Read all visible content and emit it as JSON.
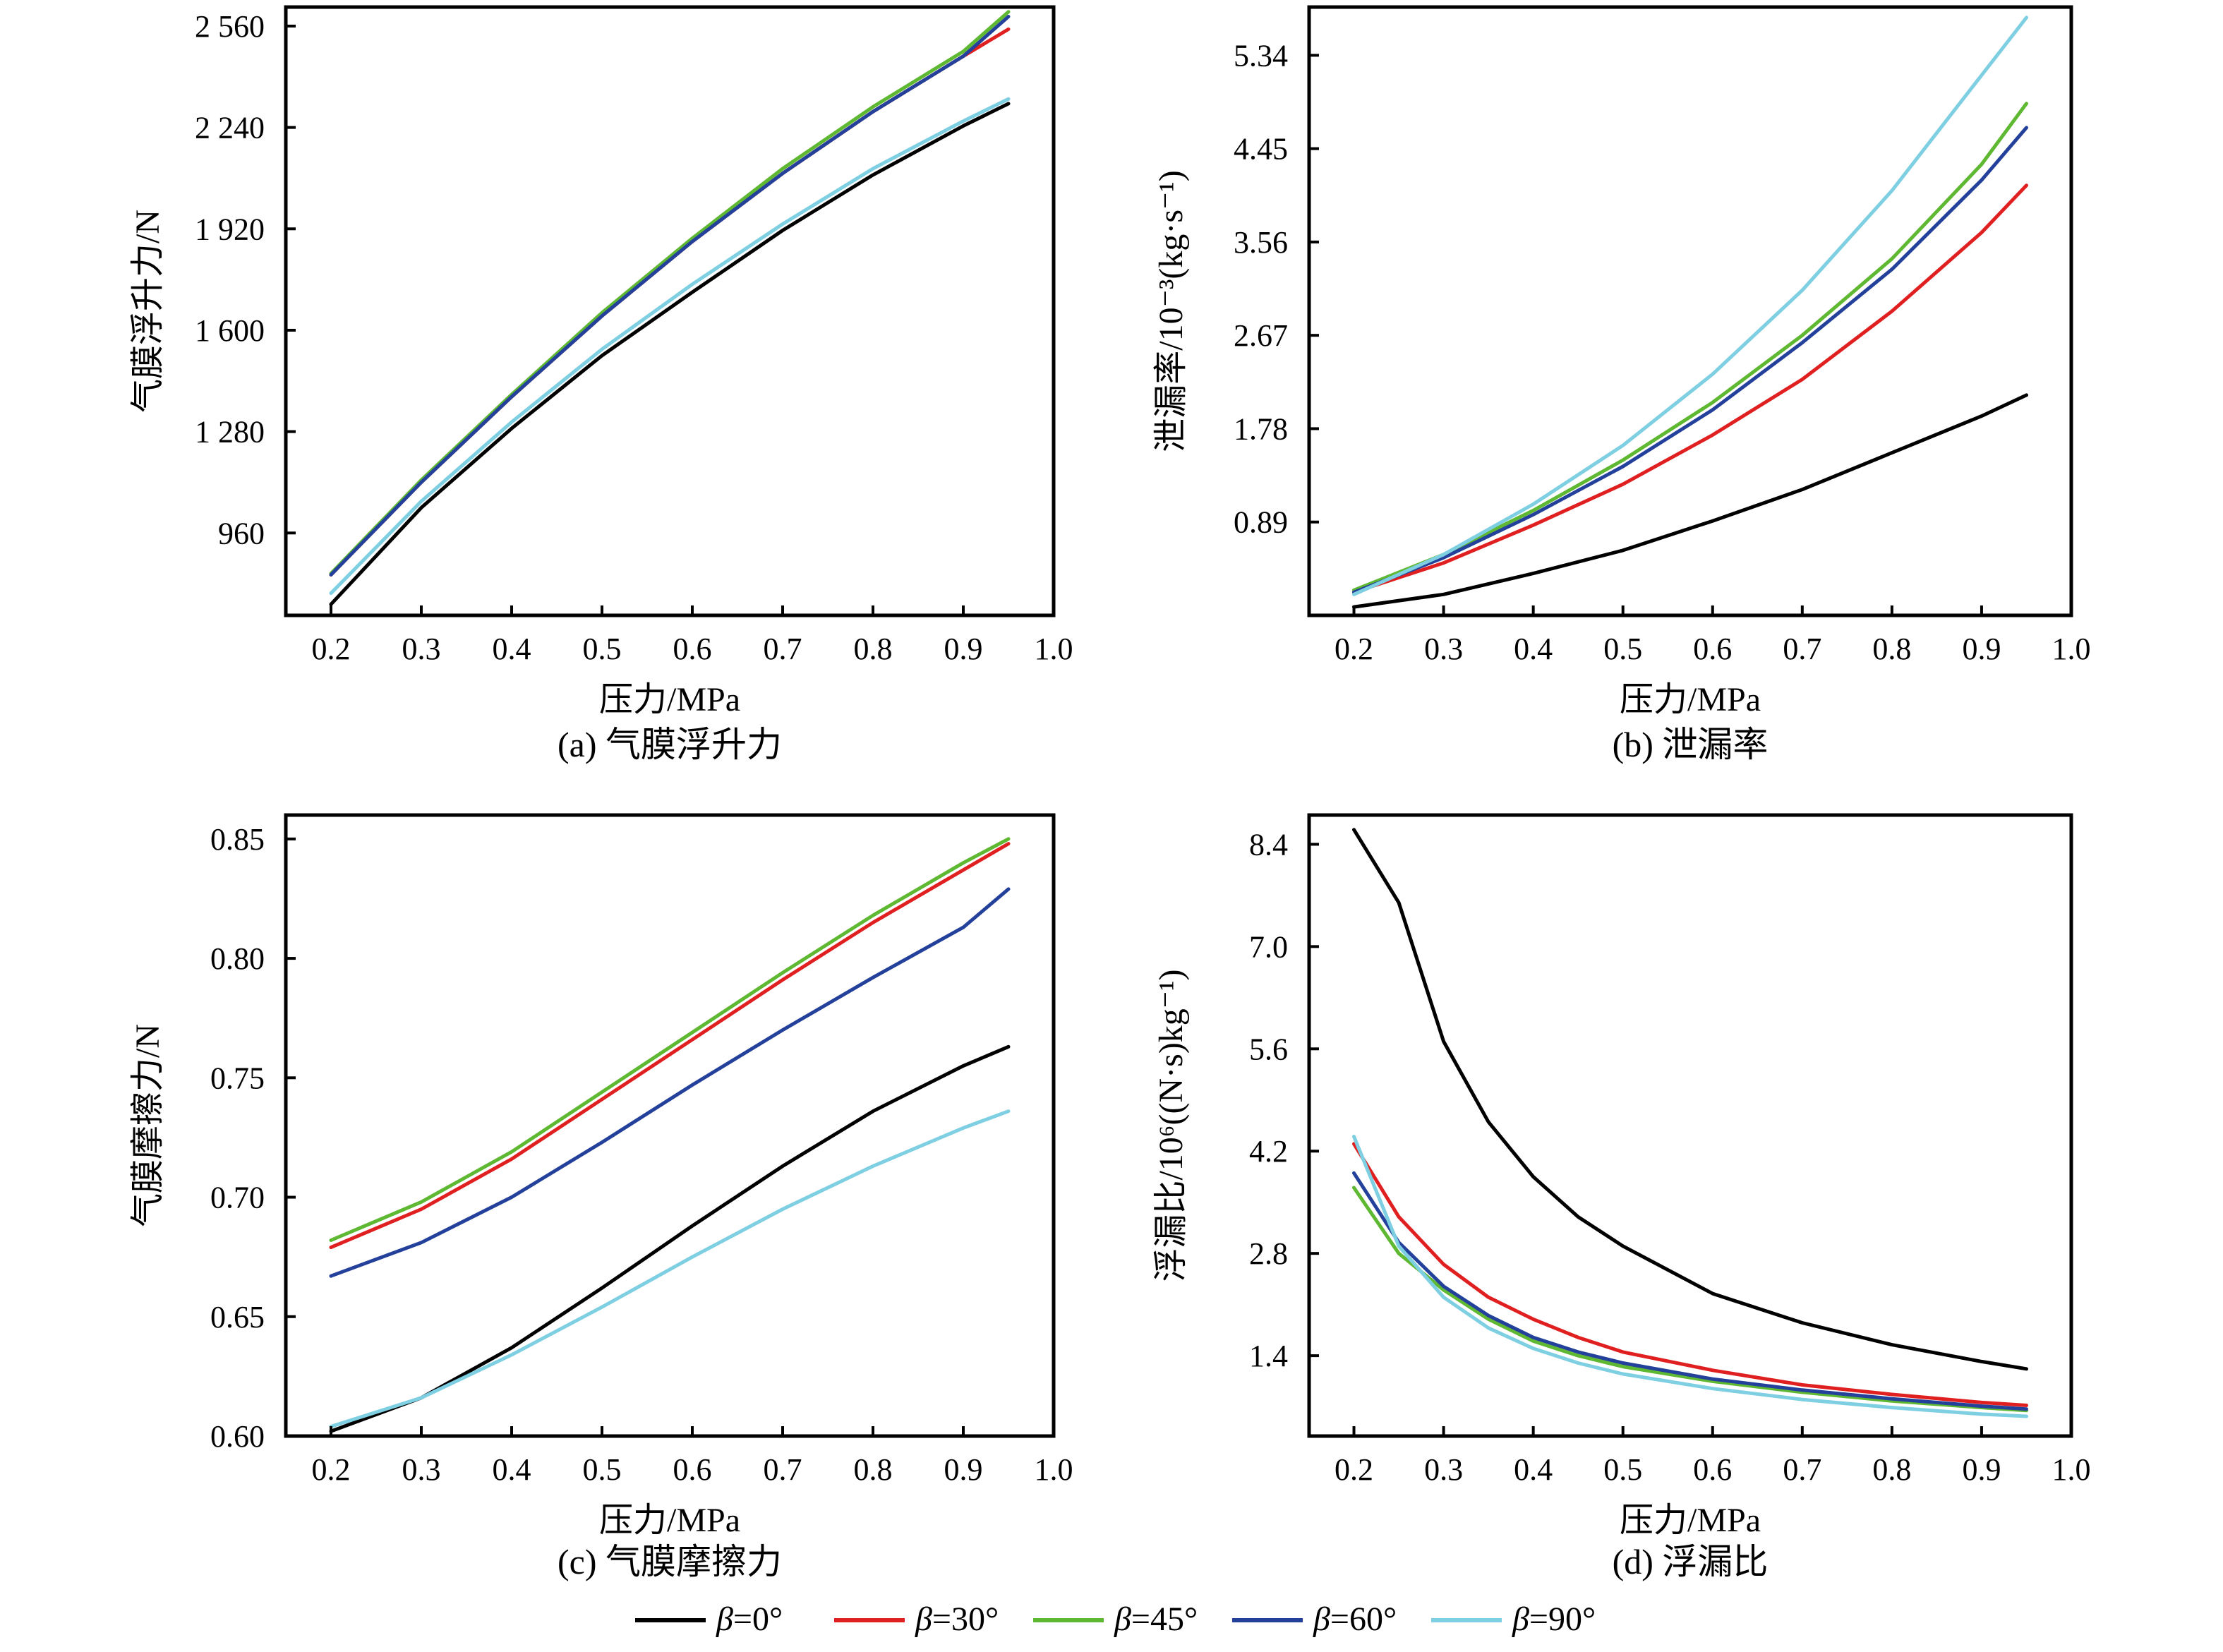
{
  "legend": {
    "prefix": "β",
    "items": [
      {
        "eq": "=0°",
        "color": "#000000"
      },
      {
        "eq": "=30°",
        "color": "#e02020"
      },
      {
        "eq": "=45°",
        "color": "#5fb832"
      },
      {
        "eq": "=60°",
        "color": "#23409a"
      },
      {
        "eq": "=90°",
        "color": "#7ecfe2"
      }
    ]
  },
  "chart_data": [
    {
      "id": "a",
      "type": "line",
      "caption": "(a) 气膜浮升力",
      "xlabel": "压力/MPa",
      "ylabel": "气膜浮升力/N",
      "xlim": [
        0.15,
        1.0
      ],
      "ylim": [
        700,
        2620
      ],
      "xticks": [
        "0.2",
        "0.3",
        "0.4",
        "0.5",
        "0.6",
        "0.7",
        "0.8",
        "0.9",
        "1.0"
      ],
      "yticks": [
        "960",
        "1 280",
        "1 600",
        "1 920",
        "2 240",
        "2 560"
      ],
      "x": [
        0.2,
        0.3,
        0.4,
        0.5,
        0.6,
        0.7,
        0.8,
        0.9,
        0.95
      ],
      "series": [
        {
          "name": "β=0°",
          "color": "#000000",
          "values": [
            735,
            1040,
            1290,
            1520,
            1720,
            1915,
            2090,
            2245,
            2315
          ]
        },
        {
          "name": "β=30°",
          "color": "#e02020",
          "values": [
            828,
            1120,
            1390,
            1645,
            1880,
            2095,
            2290,
            2465,
            2550
          ]
        },
        {
          "name": "β=45°",
          "color": "#5fb832",
          "values": [
            832,
            1127,
            1397,
            1655,
            1890,
            2110,
            2305,
            2480,
            2605
          ]
        },
        {
          "name": "β=60°",
          "color": "#23409a",
          "values": [
            828,
            1120,
            1390,
            1645,
            1880,
            2095,
            2290,
            2465,
            2590
          ]
        },
        {
          "name": "β=90°",
          "color": "#7ecfe2",
          "values": [
            770,
            1060,
            1310,
            1540,
            1745,
            1935,
            2110,
            2260,
            2330
          ]
        }
      ]
    },
    {
      "id": "b",
      "type": "line",
      "caption": "(b) 泄漏率",
      "xlabel": "压力/MPa",
      "ylabel": "泄漏率/10⁻³(kg·s⁻¹)",
      "xlim": [
        0.15,
        1.0
      ],
      "ylim": [
        0.0,
        5.8
      ],
      "xticks": [
        "0.2",
        "0.3",
        "0.4",
        "0.5",
        "0.6",
        "0.7",
        "0.8",
        "0.9",
        "1.0"
      ],
      "yticks": [
        "0.89",
        "1.78",
        "2.67",
        "3.56",
        "4.45",
        "5.34"
      ],
      "x": [
        0.2,
        0.3,
        0.4,
        0.5,
        0.6,
        0.7,
        0.8,
        0.9,
        0.95
      ],
      "series": [
        {
          "name": "β=0°",
          "color": "#000000",
          "values": [
            0.08,
            0.2,
            0.4,
            0.62,
            0.9,
            1.2,
            1.55,
            1.9,
            2.1
          ]
        },
        {
          "name": "β=30°",
          "color": "#e02020",
          "values": [
            0.22,
            0.5,
            0.86,
            1.25,
            1.72,
            2.25,
            2.9,
            3.65,
            4.1
          ]
        },
        {
          "name": "β=45°",
          "color": "#5fb832",
          "values": [
            0.24,
            0.58,
            1.0,
            1.48,
            2.03,
            2.67,
            3.4,
            4.3,
            4.88
          ]
        },
        {
          "name": "β=60°",
          "color": "#23409a",
          "values": [
            0.22,
            0.55,
            0.96,
            1.42,
            1.96,
            2.6,
            3.3,
            4.15,
            4.65
          ]
        },
        {
          "name": "β=90°",
          "color": "#7ecfe2",
          "values": [
            0.2,
            0.58,
            1.06,
            1.62,
            2.3,
            3.1,
            4.05,
            5.15,
            5.7
          ]
        }
      ]
    },
    {
      "id": "c",
      "type": "line",
      "caption": "(c) 气膜摩擦力",
      "xlabel": "压力/MPa",
      "ylabel": "气膜摩擦力/N",
      "xlim": [
        0.15,
        1.0
      ],
      "ylim": [
        0.6,
        0.86
      ],
      "xticks": [
        "0.2",
        "0.3",
        "0.4",
        "0.5",
        "0.6",
        "0.7",
        "0.8",
        "0.9",
        "1.0"
      ],
      "yticks": [
        "0.60",
        "0.65",
        "0.70",
        "0.75",
        "0.80",
        "0.85"
      ],
      "x": [
        0.2,
        0.3,
        0.4,
        0.5,
        0.6,
        0.7,
        0.8,
        0.9,
        0.95
      ],
      "series": [
        {
          "name": "β=0°",
          "color": "#000000",
          "values": [
            0.602,
            0.616,
            0.637,
            0.662,
            0.688,
            0.713,
            0.736,
            0.755,
            0.763
          ]
        },
        {
          "name": "β=30°",
          "color": "#e02020",
          "values": [
            0.679,
            0.695,
            0.716,
            0.741,
            0.766,
            0.791,
            0.815,
            0.837,
            0.848
          ]
        },
        {
          "name": "β=45°",
          "color": "#5fb832",
          "values": [
            0.682,
            0.698,
            0.719,
            0.744,
            0.769,
            0.794,
            0.818,
            0.84,
            0.85
          ]
        },
        {
          "name": "β=60°",
          "color": "#23409a",
          "values": [
            0.667,
            0.681,
            0.7,
            0.723,
            0.747,
            0.77,
            0.792,
            0.813,
            0.829
          ]
        },
        {
          "name": "β=90°",
          "color": "#7ecfe2",
          "values": [
            0.604,
            0.616,
            0.634,
            0.654,
            0.675,
            0.695,
            0.713,
            0.729,
            0.736
          ]
        }
      ]
    },
    {
      "id": "d",
      "type": "line",
      "caption": "(d) 浮漏比",
      "xlabel": "压力/MPa",
      "ylabel": "浮漏比/10⁶((N·s)kg⁻¹)",
      "xlim": [
        0.15,
        1.0
      ],
      "ylim": [
        0.3,
        8.8
      ],
      "xticks": [
        "0.2",
        "0.3",
        "0.4",
        "0.5",
        "0.6",
        "0.7",
        "0.8",
        "0.9",
        "1.0"
      ],
      "yticks": [
        "1.4",
        "2.8",
        "4.2",
        "5.6",
        "7.0",
        "8.4"
      ],
      "x": [
        0.2,
        0.25,
        0.3,
        0.35,
        0.4,
        0.45,
        0.5,
        0.6,
        0.7,
        0.8,
        0.9,
        0.95
      ],
      "series": [
        {
          "name": "β=0°",
          "color": "#000000",
          "values": [
            8.6,
            7.6,
            5.7,
            4.6,
            3.85,
            3.3,
            2.9,
            2.25,
            1.85,
            1.55,
            1.32,
            1.22
          ]
        },
        {
          "name": "β=30°",
          "color": "#e02020",
          "values": [
            4.3,
            3.3,
            2.65,
            2.2,
            1.9,
            1.65,
            1.45,
            1.2,
            1.0,
            0.87,
            0.76,
            0.72
          ]
        },
        {
          "name": "β=45°",
          "color": "#5fb832",
          "values": [
            3.7,
            2.8,
            2.3,
            1.9,
            1.6,
            1.4,
            1.25,
            1.05,
            0.9,
            0.78,
            0.69,
            0.65
          ]
        },
        {
          "name": "β=60°",
          "color": "#23409a",
          "values": [
            3.9,
            2.95,
            2.35,
            1.95,
            1.65,
            1.45,
            1.3,
            1.08,
            0.93,
            0.81,
            0.71,
            0.67
          ]
        },
        {
          "name": "β=90°",
          "color": "#7ecfe2",
          "values": [
            4.4,
            2.9,
            2.2,
            1.78,
            1.5,
            1.3,
            1.15,
            0.95,
            0.8,
            0.69,
            0.6,
            0.57
          ]
        }
      ]
    }
  ]
}
